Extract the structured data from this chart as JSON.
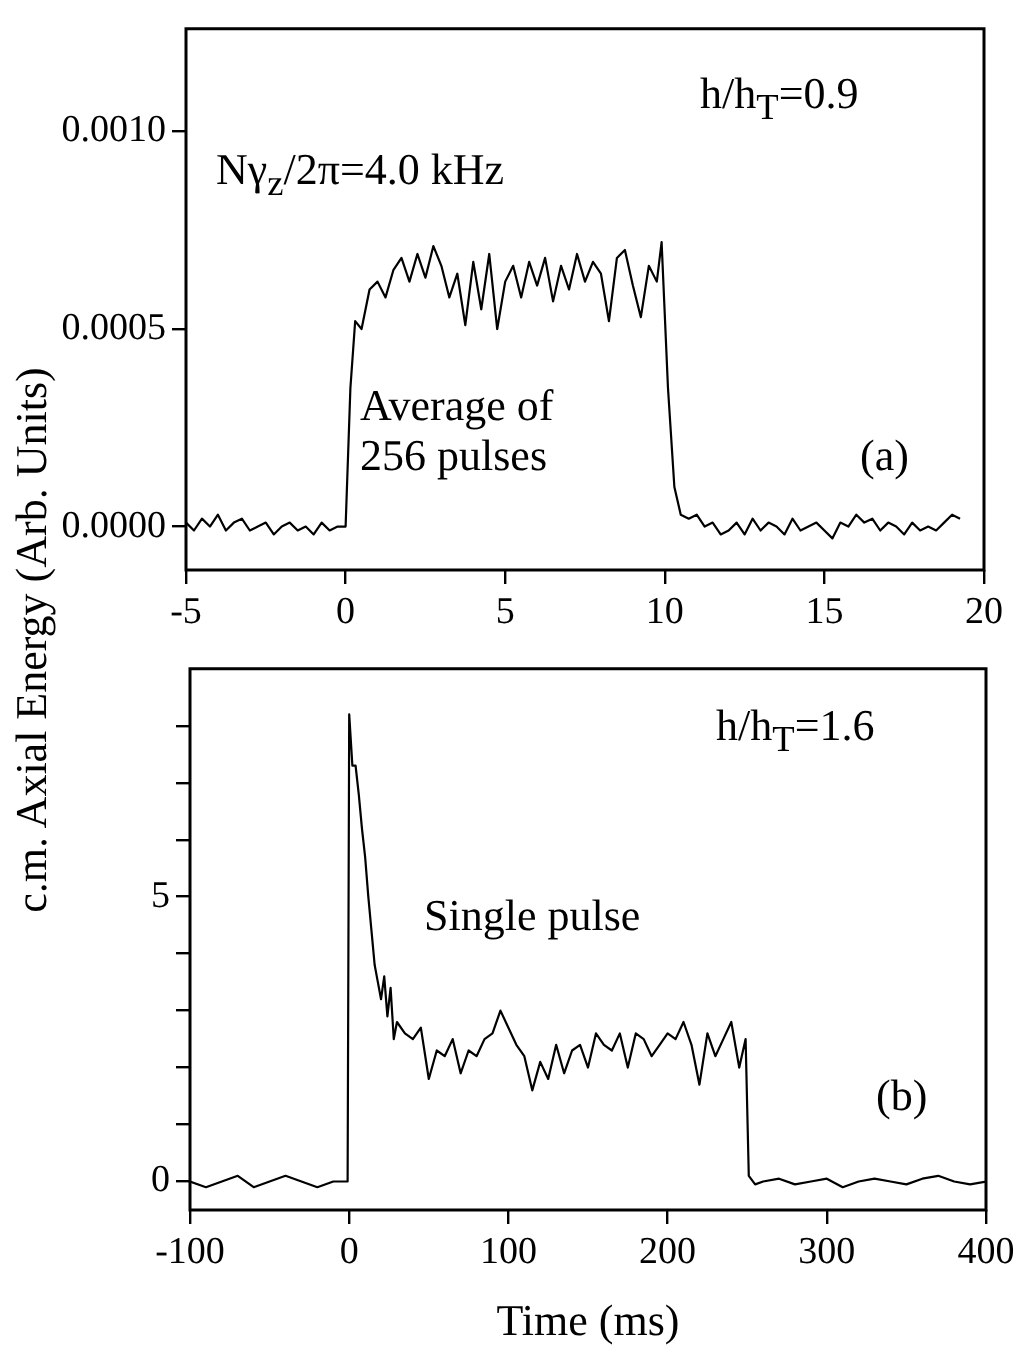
{
  "chart_data": [
    {
      "type": "line",
      "ylabel": "c.m. Axial Energy (Arb. Units)",
      "annotations": [
        "h/h$_{T}$=0.9",
        "Nγ$_{z}$/2π=4.0 kHz",
        "Average of 256 pulses",
        "(a)"
      ],
      "xlim": [
        -5,
        20
      ],
      "ylim": [
        -0.00011,
        0.00126
      ],
      "xticks": [
        -5,
        0,
        5,
        10,
        15,
        20
      ],
      "yticks": [
        {
          "value": 0,
          "label": "0.0000"
        },
        0.0005,
        {
          "value": 0.001,
          "label": "0.0010"
        }
      ],
      "series": [
        {
          "color": "#000000",
          "x": [
            -5,
            -4.75,
            -4.5,
            -4.25,
            -4,
            -3.75,
            -3.5,
            -3.25,
            -3,
            -2.75,
            -2.5,
            -2.25,
            -2,
            -1.75,
            -1.5,
            -1.25,
            -1,
            -0.75,
            -0.5,
            -0.25,
            0,
            0.15,
            0.3,
            0.5,
            0.75,
            1,
            1.25,
            1.5,
            1.75,
            2,
            2.25,
            2.5,
            2.75,
            3,
            3.25,
            3.5,
            3.75,
            4,
            4.25,
            4.5,
            4.75,
            5,
            5.25,
            5.5,
            5.75,
            6,
            6.25,
            6.5,
            6.75,
            7,
            7.25,
            7.5,
            7.75,
            8,
            8.25,
            8.5,
            8.75,
            9,
            9.25,
            9.5,
            9.75,
            9.9,
            10.1,
            10.3,
            10.5,
            10.75,
            11,
            11.25,
            11.5,
            11.75,
            12,
            12.25,
            12.5,
            12.75,
            13,
            13.25,
            13.5,
            13.75,
            14,
            14.25,
            14.5,
            14.75,
            15,
            15.25,
            15.5,
            15.75,
            16,
            16.25,
            16.5,
            16.75,
            17,
            17.25,
            17.5,
            17.75,
            18,
            18.25,
            18.5,
            18.75,
            19,
            19.25
          ],
          "values": [
            1e-05,
            -1e-05,
            2e-05,
            0,
            3e-05,
            -1e-05,
            1e-05,
            2e-05,
            -1e-05,
            0,
            1e-05,
            -2e-05,
            0,
            1e-05,
            -1e-05,
            0,
            -2e-05,
            1e-05,
            -1e-05,
            0,
            0,
            0.00035,
            0.00052,
            0.0005,
            0.0006,
            0.00062,
            0.00058,
            0.00065,
            0.00068,
            0.00062,
            0.00069,
            0.00063,
            0.00071,
            0.00066,
            0.00058,
            0.00064,
            0.00051,
            0.00067,
            0.00055,
            0.00069,
            0.0005,
            0.00062,
            0.00066,
            0.00058,
            0.00067,
            0.00061,
            0.00068,
            0.00057,
            0.00066,
            0.0006,
            0.00069,
            0.00062,
            0.00067,
            0.00064,
            0.00052,
            0.00068,
            0.0007,
            0.00061,
            0.00053,
            0.00066,
            0.00062,
            0.00072,
            0.00035,
            0.0001,
            3e-05,
            2e-05,
            3e-05,
            0,
            1e-05,
            -2e-05,
            -1e-05,
            1e-05,
            -2e-05,
            2e-05,
            -1e-05,
            1e-05,
            0,
            -2e-05,
            2e-05,
            -1e-05,
            0,
            1e-05,
            -1e-05,
            -3e-05,
            1e-05,
            0,
            3e-05,
            1e-05,
            2e-05,
            -1e-05,
            1e-05,
            0,
            -2e-05,
            1e-05,
            -1e-05,
            0,
            -1e-05,
            1e-05,
            3e-05,
            2e-05
          ]
        }
      ]
    },
    {
      "type": "line",
      "xlabel": "Time (ms)",
      "annotations": [
        "h/h$_{T}$=1.6",
        "Single pulse",
        "(b)"
      ],
      "xlim": [
        -100,
        400
      ],
      "ylim": [
        -0.5,
        9
      ],
      "xticks": [
        -100,
        0,
        100,
        200,
        300,
        400
      ],
      "yticks": [
        0,
        {
          "value": 1,
          "label": null
        },
        {
          "value": 2,
          "label": null
        },
        {
          "value": 3,
          "label": null
        },
        {
          "value": 4,
          "label": null
        },
        5,
        {
          "value": 6,
          "label": null
        },
        {
          "value": 7,
          "label": null
        },
        {
          "value": 8,
          "label": null
        }
      ],
      "series": [
        {
          "color": "#000000",
          "x": [
            -100,
            -90,
            -80,
            -70,
            -60,
            -50,
            -40,
            -30,
            -20,
            -10,
            -1,
            0,
            2,
            4,
            6,
            8,
            10,
            12,
            14,
            16,
            18,
            20,
            22,
            24,
            26,
            28,
            30,
            35,
            40,
            45,
            50,
            55,
            60,
            65,
            70,
            75,
            80,
            85,
            90,
            95,
            100,
            105,
            110,
            115,
            120,
            125,
            130,
            135,
            140,
            145,
            150,
            155,
            160,
            165,
            170,
            175,
            180,
            185,
            190,
            195,
            200,
            205,
            210,
            215,
            220,
            225,
            230,
            235,
            240,
            245,
            249,
            251,
            255,
            260,
            270,
            280,
            290,
            300,
            310,
            320,
            330,
            340,
            350,
            360,
            370,
            380,
            390,
            400
          ],
          "values": [
            0,
            -0.1,
            0,
            0.1,
            -0.1,
            0,
            0.1,
            0,
            -0.1,
            0,
            0,
            8.2,
            7.3,
            7.3,
            6.8,
            6.2,
            5.7,
            5,
            4.4,
            3.8,
            3.5,
            3.2,
            3.6,
            2.9,
            3.4,
            2.5,
            2.8,
            2.6,
            2.5,
            2.7,
            1.8,
            2.3,
            2.2,
            2.5,
            1.9,
            2.3,
            2.2,
            2.5,
            2.6,
            3,
            2.7,
            2.4,
            2.2,
            1.6,
            2.1,
            1.8,
            2.4,
            1.9,
            2.3,
            2.4,
            2,
            2.6,
            2.4,
            2.3,
            2.6,
            2,
            2.6,
            2.5,
            2.2,
            2.4,
            2.6,
            2.5,
            2.8,
            2.4,
            1.7,
            2.6,
            2.2,
            2.5,
            2.8,
            2,
            2.5,
            0.1,
            -0.05,
            0,
            0.05,
            -0.05,
            0,
            0.05,
            -0.1,
            0,
            0.05,
            0,
            -0.05,
            0.05,
            0.1,
            0,
            -0.05,
            0
          ]
        }
      ]
    }
  ]
}
